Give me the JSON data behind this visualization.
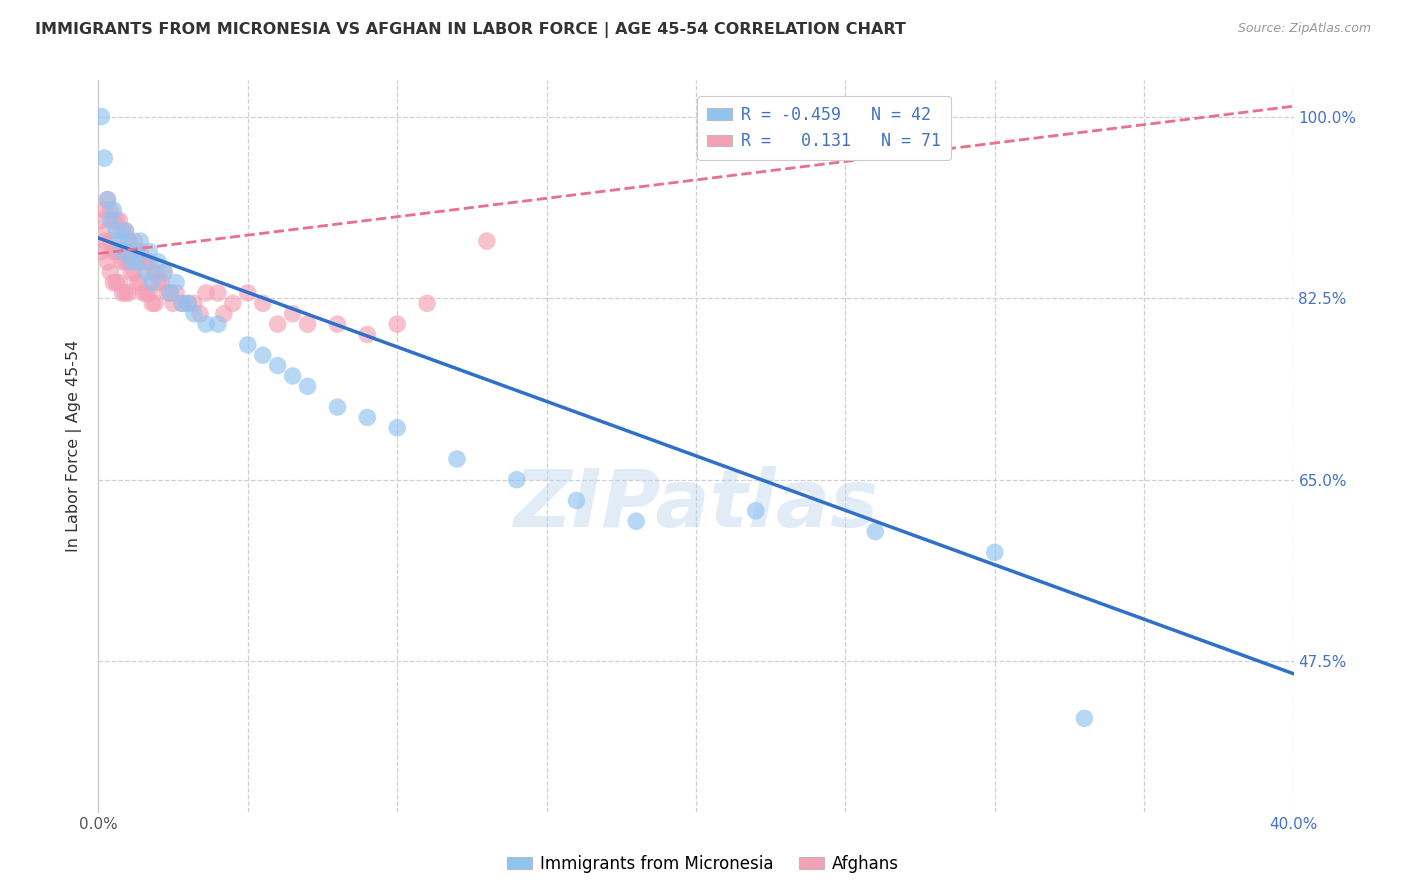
{
  "title": "IMMIGRANTS FROM MICRONESIA VS AFGHAN IN LABOR FORCE | AGE 45-54 CORRELATION CHART",
  "source": "Source: ZipAtlas.com",
  "ylabel": "In Labor Force | Age 45-54",
  "x_min": 0.0,
  "x_max": 0.4,
  "y_min": 0.33,
  "y_max": 1.035,
  "yticks": [
    1.0,
    0.825,
    0.65,
    0.475
  ],
  "ytick_labels": [
    "100.0%",
    "82.5%",
    "65.0%",
    "47.5%"
  ],
  "xticks": [
    0.0,
    0.05,
    0.1,
    0.15,
    0.2,
    0.25,
    0.3,
    0.35,
    0.4
  ],
  "xtick_labels": [
    "0.0%",
    "",
    "",
    "",
    "",
    "",
    "",
    "",
    "40.0%"
  ],
  "micronesia_R": -0.459,
  "micronesia_N": 42,
  "afghan_R": 0.131,
  "afghan_N": 71,
  "micronesia_color": "#91C3F0",
  "afghan_color": "#F4A0B5",
  "micronesia_line_color": "#3070C8",
  "afghan_line_color": "#E8708A",
  "watermark": "ZIPatlas",
  "mic_line_x0": 0.0,
  "mic_line_y0": 0.883,
  "mic_line_x1": 0.4,
  "mic_line_y1": 0.463,
  "afg_line_x0": 0.0,
  "afg_line_y0": 0.868,
  "afg_line_x1": 0.4,
  "afg_line_y1": 1.01,
  "micronesia_x": [
    0.001,
    0.002,
    0.003,
    0.004,
    0.005,
    0.006,
    0.007,
    0.008,
    0.009,
    0.01,
    0.011,
    0.012,
    0.013,
    0.014,
    0.016,
    0.017,
    0.018,
    0.02,
    0.022,
    0.024,
    0.026,
    0.028,
    0.03,
    0.032,
    0.036,
    0.04,
    0.05,
    0.055,
    0.06,
    0.065,
    0.07,
    0.08,
    0.09,
    0.1,
    0.12,
    0.14,
    0.16,
    0.18,
    0.22,
    0.26,
    0.3,
    0.33
  ],
  "micronesia_y": [
    1.0,
    0.96,
    0.92,
    0.9,
    0.91,
    0.89,
    0.88,
    0.87,
    0.89,
    0.88,
    0.86,
    0.87,
    0.86,
    0.88,
    0.85,
    0.87,
    0.84,
    0.86,
    0.85,
    0.83,
    0.84,
    0.82,
    0.82,
    0.81,
    0.8,
    0.8,
    0.78,
    0.77,
    0.76,
    0.75,
    0.74,
    0.72,
    0.71,
    0.7,
    0.67,
    0.65,
    0.63,
    0.61,
    0.62,
    0.6,
    0.58,
    0.42
  ],
  "afghan_x": [
    0.001,
    0.001,
    0.002,
    0.002,
    0.003,
    0.003,
    0.003,
    0.004,
    0.004,
    0.004,
    0.005,
    0.005,
    0.005,
    0.006,
    0.006,
    0.006,
    0.007,
    0.007,
    0.007,
    0.008,
    0.008,
    0.008,
    0.009,
    0.009,
    0.009,
    0.01,
    0.01,
    0.01,
    0.011,
    0.011,
    0.012,
    0.012,
    0.013,
    0.013,
    0.014,
    0.014,
    0.015,
    0.015,
    0.016,
    0.016,
    0.017,
    0.017,
    0.018,
    0.018,
    0.019,
    0.019,
    0.02,
    0.021,
    0.022,
    0.023,
    0.024,
    0.025,
    0.026,
    0.028,
    0.03,
    0.032,
    0.034,
    0.036,
    0.04,
    0.042,
    0.045,
    0.05,
    0.055,
    0.06,
    0.065,
    0.07,
    0.08,
    0.09,
    0.1,
    0.11,
    0.13
  ],
  "afghan_y": [
    0.9,
    0.87,
    0.91,
    0.88,
    0.92,
    0.89,
    0.86,
    0.91,
    0.88,
    0.85,
    0.9,
    0.87,
    0.84,
    0.9,
    0.87,
    0.84,
    0.9,
    0.87,
    0.84,
    0.89,
    0.86,
    0.83,
    0.89,
    0.86,
    0.83,
    0.88,
    0.86,
    0.83,
    0.87,
    0.85,
    0.88,
    0.85,
    0.87,
    0.84,
    0.87,
    0.84,
    0.86,
    0.83,
    0.86,
    0.83,
    0.86,
    0.83,
    0.85,
    0.82,
    0.85,
    0.82,
    0.84,
    0.84,
    0.85,
    0.83,
    0.83,
    0.82,
    0.83,
    0.82,
    0.82,
    0.82,
    0.81,
    0.83,
    0.83,
    0.81,
    0.82,
    0.83,
    0.82,
    0.8,
    0.81,
    0.8,
    0.8,
    0.79,
    0.8,
    0.82,
    0.88
  ],
  "ytick_color": "#4472C4",
  "grid_color": "#D0D0D0",
  "background_color": "#FFFFFF",
  "title_fontsize": 12,
  "source_fontsize": 9
}
